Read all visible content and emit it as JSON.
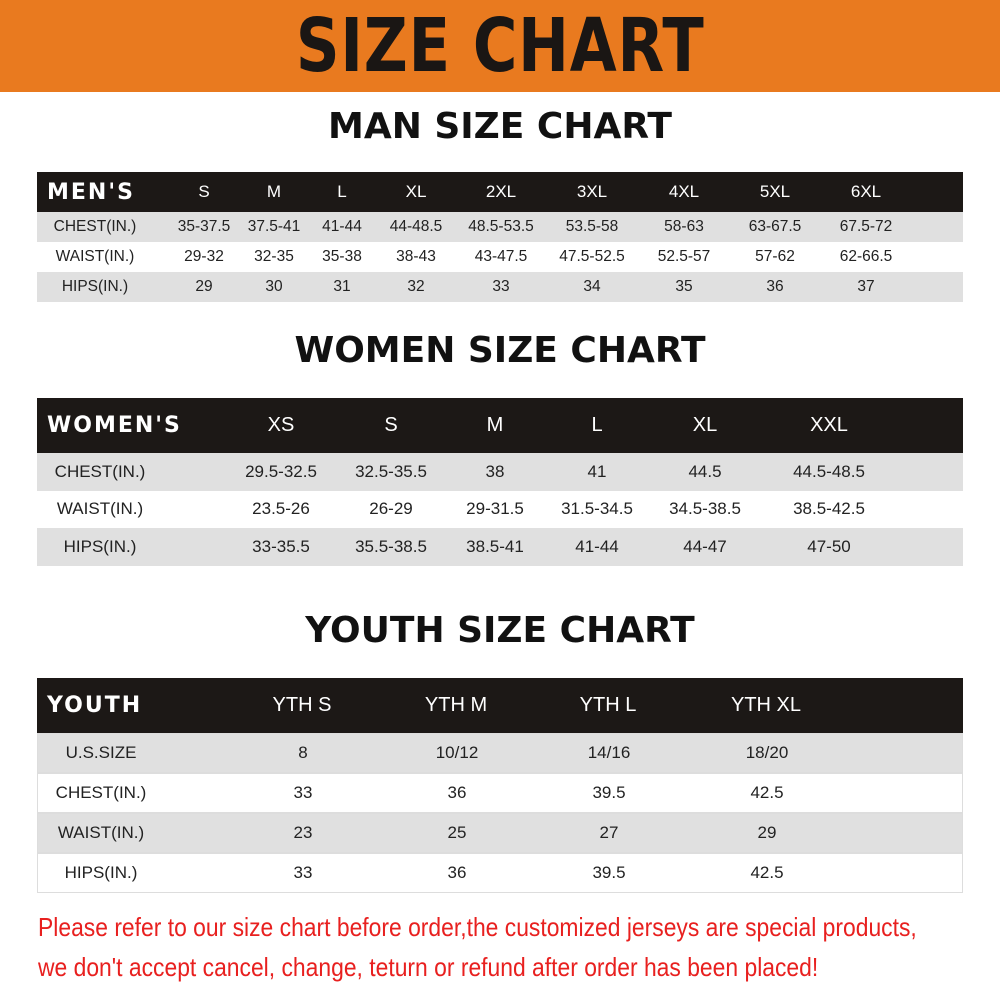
{
  "banner_title": "SIZE CHART",
  "colors": {
    "banner": "#e97a1f",
    "header_bar": "#1c1816",
    "row_gray": "#e0e0e0",
    "notice": "#e8201f"
  },
  "men": {
    "title": "MAN SIZE CHART",
    "header_label": "MEN'S",
    "sizes": [
      "S",
      "M",
      "L",
      "XL",
      "2XL",
      "3XL",
      "4XL",
      "5XL",
      "6XL"
    ],
    "rows": [
      {
        "label": "CHEST(IN.)",
        "values": [
          "35-37.5",
          "37.5-41",
          "41-44",
          "44-48.5",
          "48.5-53.5",
          "53.5-58",
          "58-63",
          "63-67.5",
          "67.5-72"
        ]
      },
      {
        "label": "WAIST(IN.)",
        "values": [
          "29-32",
          "32-35",
          "35-38",
          "38-43",
          "43-47.5",
          "47.5-52.5",
          "52.5-57",
          "57-62",
          "62-66.5"
        ]
      },
      {
        "label": "HIPS(IN.)",
        "values": [
          "29",
          "30",
          "31",
          "32",
          "33",
          "34",
          "35",
          "36",
          "37"
        ]
      }
    ]
  },
  "women": {
    "title": "WOMEN SIZE CHART",
    "header_label": "WOMEN'S",
    "sizes": [
      "XS",
      "S",
      "M",
      "L",
      "XL",
      "XXL"
    ],
    "rows": [
      {
        "label": "CHEST(IN.)",
        "values": [
          "29.5-32.5",
          "32.5-35.5",
          "38",
          "41",
          "44.5",
          "44.5-48.5"
        ]
      },
      {
        "label": "WAIST(IN.)",
        "values": [
          "23.5-26",
          "26-29",
          "29-31.5",
          "31.5-34.5",
          "34.5-38.5",
          "38.5-42.5"
        ]
      },
      {
        "label": "HIPS(IN.)",
        "values": [
          "33-35.5",
          "35.5-38.5",
          "38.5-41",
          "41-44",
          "44-47",
          "47-50"
        ]
      }
    ]
  },
  "youth": {
    "title": "YOUTH SIZE CHART",
    "header_label": "YOUTH",
    "sizes": [
      "YTH S",
      "YTH M",
      "YTH L",
      "YTH XL"
    ],
    "rows": [
      {
        "label": "U.S.SIZE",
        "values": [
          "8",
          "10/12",
          "14/16",
          "18/20"
        ]
      },
      {
        "label": "CHEST(IN.)",
        "values": [
          "33",
          "36",
          "39.5",
          "42.5"
        ]
      },
      {
        "label": "WAIST(IN.)",
        "values": [
          "23",
          "25",
          "27",
          "29"
        ]
      },
      {
        "label": "HIPS(IN.)",
        "values": [
          "33",
          "36",
          "39.5",
          "42.5"
        ]
      }
    ]
  },
  "notice": [
    "Please refer to our size chart before order,the customized jerseys are special products,",
    "we don't accept cancel, change, teturn or refund after order has been placed!"
  ]
}
